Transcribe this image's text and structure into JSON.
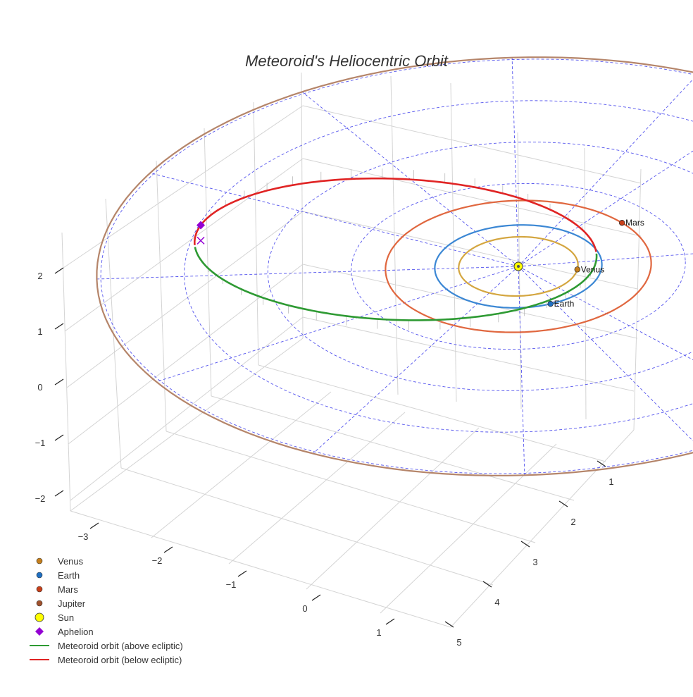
{
  "chart_data": {
    "type": "3d-orbit",
    "title": "Meteoroid's Heliocentric Orbit",
    "axes": {
      "x": {
        "ticks": [
          -3,
          -2,
          -1,
          0,
          1
        ],
        "range": [
          -3.3,
          1.8
        ]
      },
      "y": {
        "ticks": [
          1,
          2,
          3,
          4,
          5
        ],
        "range": [
          0.6,
          5.3
        ]
      },
      "z": {
        "ticks": [
          -2,
          -1,
          0,
          1,
          2
        ],
        "range": [
          -2.3,
          2.7
        ]
      }
    },
    "bodies": [
      {
        "name": "Venus",
        "label": "Venus",
        "color": "#c57f1c",
        "orbit_color": "#d4a640",
        "orbit_radius_au": 0.72
      },
      {
        "name": "Earth",
        "label": "Earth",
        "color": "#1f6fc2",
        "orbit_color": "#3b87d4",
        "orbit_radius_au": 1.0
      },
      {
        "name": "Mars",
        "label": "Mars",
        "color": "#c8401a",
        "orbit_color": "#e0673f",
        "orbit_radius_au": 1.52
      },
      {
        "name": "Jupiter",
        "label": "",
        "color": "#a0522d",
        "orbit_color": "#b5856a",
        "orbit_radius_au": 5.2
      }
    ],
    "sun": {
      "name": "Sun",
      "color": "#ffff00"
    },
    "meteoroid": {
      "semi_major_axis_au": 2.3,
      "eccentricity": 0.63,
      "above_color": "#2e9a33",
      "below_color": "#e02424"
    },
    "aphelion": {
      "name": "Aphelion",
      "color": "#9400d3"
    },
    "ecliptic_grid_color": "#5555ee",
    "legend": [
      {
        "label": "Venus",
        "symbol": "dot",
        "color": "#c57f1c"
      },
      {
        "label": "Earth",
        "symbol": "dot",
        "color": "#1f6fc2"
      },
      {
        "label": "Mars",
        "symbol": "dot",
        "color": "#c8401a"
      },
      {
        "label": "Jupiter",
        "symbol": "dot",
        "color": "#a0522d"
      },
      {
        "label": "Sun",
        "symbol": "sun",
        "color": "#ffff00"
      },
      {
        "label": "Aphelion",
        "symbol": "diamond",
        "color": "#9400d3"
      },
      {
        "label": "Meteoroid orbit (above ecliptic)",
        "symbol": "line",
        "color": "#2e9a33"
      },
      {
        "label": "Meteoroid orbit (below ecliptic)",
        "symbol": "line",
        "color": "#e02424"
      }
    ]
  }
}
